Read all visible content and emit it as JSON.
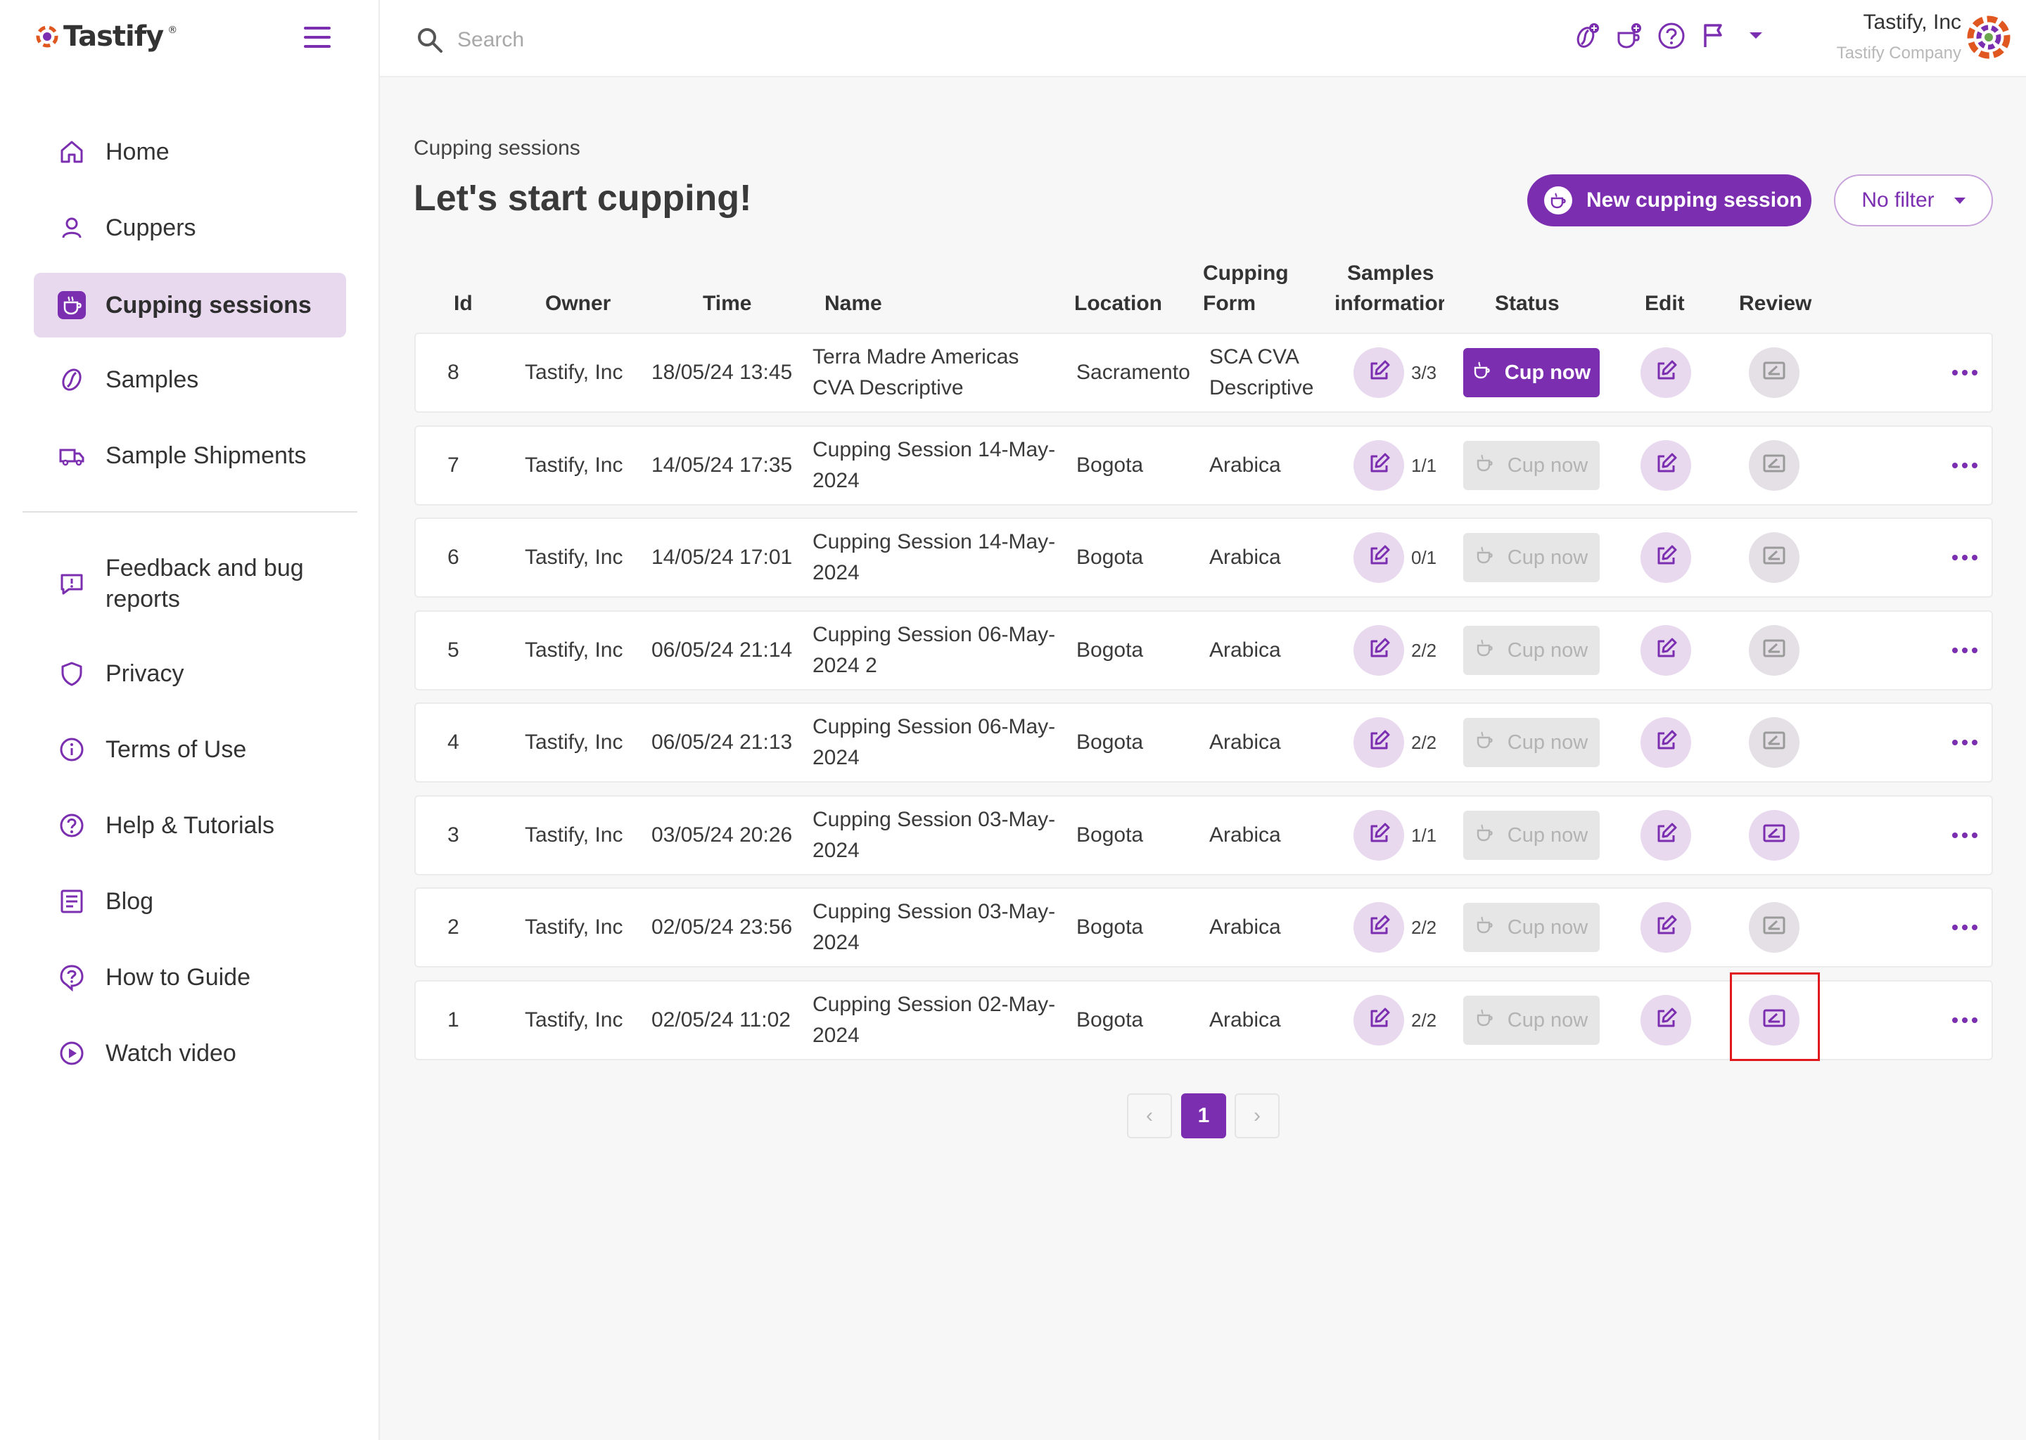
{
  "brand": {
    "name": "Tastify",
    "tm": "®"
  },
  "search": {
    "placeholder": "Search"
  },
  "user": {
    "name": "Tastify, Inc",
    "company": "Tastify Company"
  },
  "colors": {
    "accent": "#7b2fb0",
    "accent_light": "#e8d9ef",
    "highlight": "#e0191e"
  },
  "sidebar": {
    "items": [
      {
        "label": "Home",
        "icon": "home-icon"
      },
      {
        "label": "Cuppers",
        "icon": "user-icon"
      },
      {
        "label": "Cupping sessions",
        "icon": "coffee-cup-icon",
        "active": true
      },
      {
        "label": "Samples",
        "icon": "coffee-bean-icon"
      },
      {
        "label": "Sample Shipments",
        "icon": "truck-icon"
      },
      {
        "label": "Feedback and bug reports",
        "icon": "feedback-icon"
      },
      {
        "label": "Privacy",
        "icon": "shield-icon"
      },
      {
        "label": "Terms of Use",
        "icon": "info-icon"
      },
      {
        "label": "Help & Tutorials",
        "icon": "help-icon"
      },
      {
        "label": "Blog",
        "icon": "blog-icon"
      },
      {
        "label": "How to Guide",
        "icon": "guide-icon"
      },
      {
        "label": "Watch video",
        "icon": "play-icon"
      }
    ]
  },
  "main": {
    "breadcrumb": "Cupping sessions",
    "title": "Let's start cupping!",
    "new_button": "New cupping session",
    "filter": "No filter"
  },
  "table": {
    "headers": {
      "id": "Id",
      "owner": "Owner",
      "time": "Time",
      "name": "Name",
      "location": "Location",
      "form_1": "Cupping",
      "form_2": "Form",
      "samples_1": "Samples",
      "samples_2": "informatior",
      "status": "Status",
      "edit": "Edit",
      "review": "Review"
    },
    "rows": [
      {
        "id": "8",
        "owner": "Tastify, Inc",
        "time": "18/05/24 13:45",
        "name_1": "Terra Madre Americas",
        "name_2": "CVA Descriptive",
        "location": "Sacramento",
        "form_1": "SCA CVA",
        "form_2": "Descriptive",
        "samples": "3/3",
        "status": "Cup now",
        "status_active": true,
        "review_done": false
      },
      {
        "id": "7",
        "owner": "Tastify, Inc",
        "time": "14/05/24 17:35",
        "name_1": "Cupping Session 14-May-",
        "name_2": "2024",
        "location": "Bogota",
        "form_1": "Arabica",
        "form_2": "",
        "samples": "1/1",
        "status": "Cup now",
        "status_active": false,
        "review_done": false
      },
      {
        "id": "6",
        "owner": "Tastify, Inc",
        "time": "14/05/24 17:01",
        "name_1": "Cupping Session 14-May-",
        "name_2": "2024",
        "location": "Bogota",
        "form_1": "Arabica",
        "form_2": "",
        "samples": "0/1",
        "status": "Cup now",
        "status_active": false,
        "review_done": false
      },
      {
        "id": "5",
        "owner": "Tastify, Inc",
        "time": "06/05/24 21:14",
        "name_1": "Cupping Session 06-May-",
        "name_2": "2024 2",
        "location": "Bogota",
        "form_1": "Arabica",
        "form_2": "",
        "samples": "2/2",
        "status": "Cup now",
        "status_active": false,
        "review_done": false
      },
      {
        "id": "4",
        "owner": "Tastify, Inc",
        "time": "06/05/24 21:13",
        "name_1": "Cupping Session 06-May-",
        "name_2": "2024",
        "location": "Bogota",
        "form_1": "Arabica",
        "form_2": "",
        "samples": "2/2",
        "status": "Cup now",
        "status_active": false,
        "review_done": false
      },
      {
        "id": "3",
        "owner": "Tastify, Inc",
        "time": "03/05/24 20:26",
        "name_1": "Cupping Session 03-May-",
        "name_2": "2024",
        "location": "Bogota",
        "form_1": "Arabica",
        "form_2": "",
        "samples": "1/1",
        "status": "Cup now",
        "status_active": false,
        "review_done": true
      },
      {
        "id": "2",
        "owner": "Tastify, Inc",
        "time": "02/05/24 23:56",
        "name_1": "Cupping Session 03-May-",
        "name_2": "2024",
        "location": "Bogota",
        "form_1": "Arabica",
        "form_2": "",
        "samples": "2/2",
        "status": "Cup now",
        "status_active": false,
        "review_done": false
      },
      {
        "id": "1",
        "owner": "Tastify, Inc",
        "time": "02/05/24 11:02",
        "name_1": "Cupping Session 02-May-",
        "name_2": "2024",
        "location": "Bogota",
        "form_1": "Arabica",
        "form_2": "",
        "samples": "2/2",
        "status": "Cup now",
        "status_active": false,
        "review_done": true,
        "highlighted": true
      }
    ]
  },
  "pagination": {
    "current": "1",
    "prev": "‹",
    "next": "›"
  }
}
